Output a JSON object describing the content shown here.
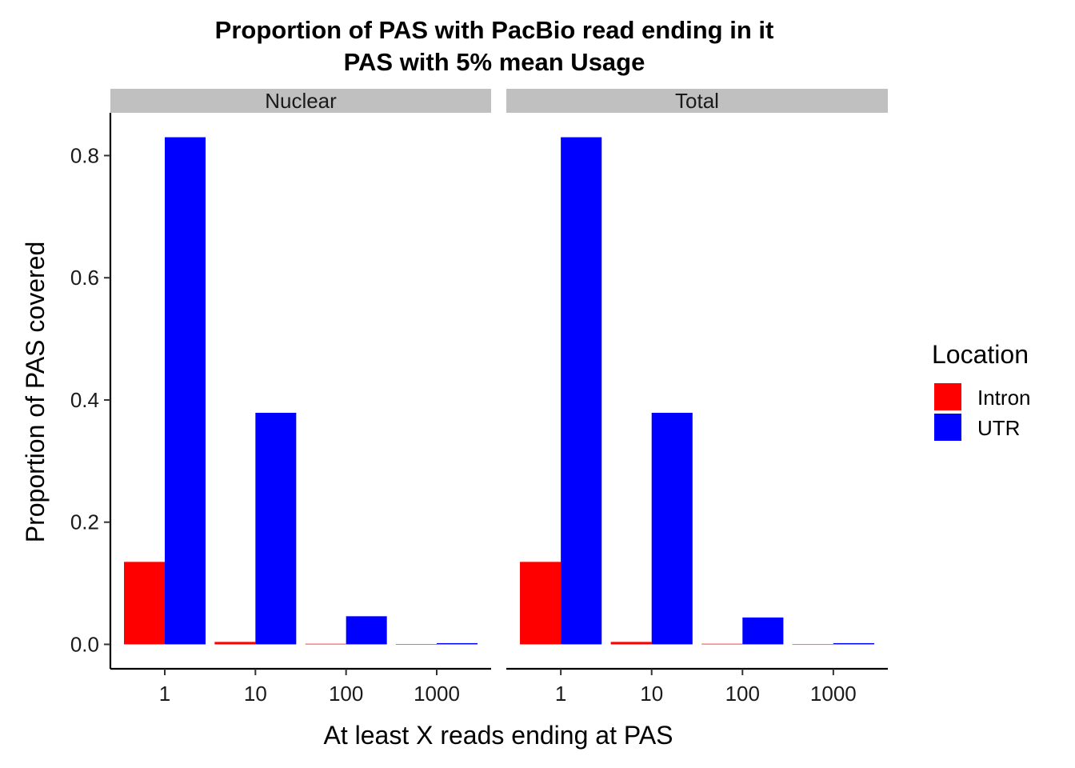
{
  "chart_data": {
    "type": "bar",
    "title": "Proportion of PAS with PacBio read ending in it",
    "subtitle": "PAS with 5% mean Usage",
    "xlabel": "At least X reads ending at PAS",
    "ylabel": "Proportion of PAS covered",
    "ylim": [
      -0.04,
      0.87
    ],
    "y_ticks": [
      "0.0",
      "0.2",
      "0.4",
      "0.6",
      "0.8"
    ],
    "categories": [
      "1",
      "10",
      "100",
      "1000"
    ],
    "legend": {
      "title": "Location",
      "position": "right"
    },
    "grid": false,
    "colors": {
      "Intron": "#ff0000",
      "UTR": "#0000ff",
      "strip": "#c0c0c0"
    },
    "panels": [
      {
        "name": "Nuclear",
        "series": [
          {
            "name": "Intron",
            "values": [
              0.135,
              0.004,
              0.001,
              0.0002
            ]
          },
          {
            "name": "UTR",
            "values": [
              0.83,
              0.379,
              0.046,
              0.002
            ]
          }
        ]
      },
      {
        "name": "Total",
        "series": [
          {
            "name": "Intron",
            "values": [
              0.135,
              0.004,
              0.001,
              0.0
            ]
          },
          {
            "name": "UTR",
            "values": [
              0.83,
              0.379,
              0.044,
              0.002
            ]
          }
        ]
      }
    ]
  }
}
